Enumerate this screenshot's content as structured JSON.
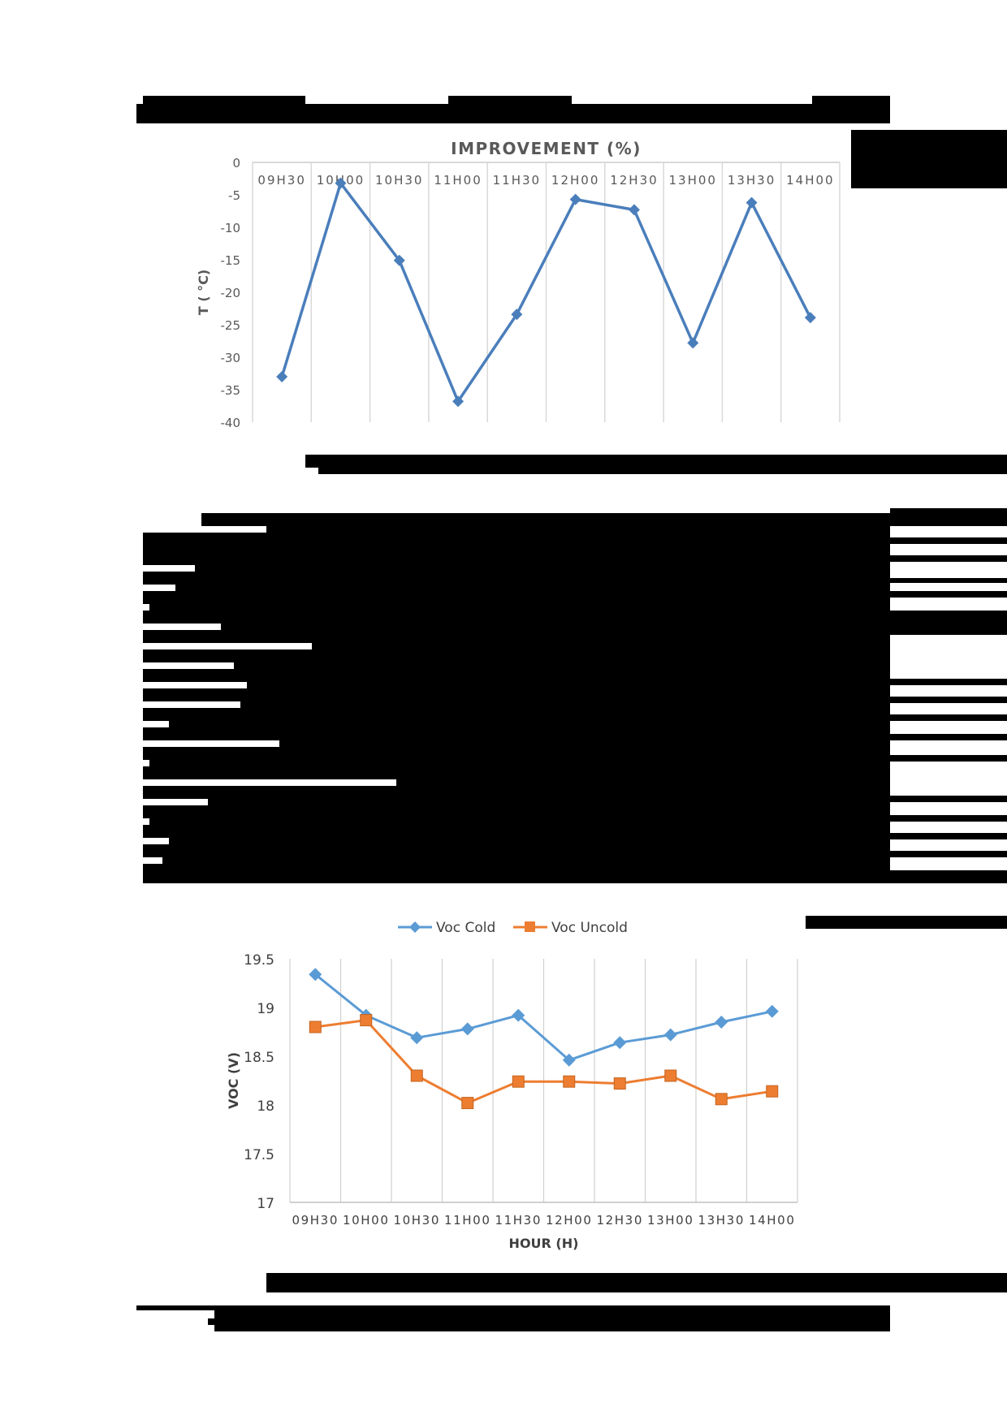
{
  "page": {
    "redaction_color": "#000000"
  },
  "figure1": {
    "title": "IMPROVEMENT (%)",
    "ylabel": "T ( °C)",
    "line_color": "#4A7EBB"
  },
  "figure2": {
    "legend": [
      "Voc  Cold",
      "Voc  Uncold"
    ],
    "xlabel": "HOUR (H)",
    "ylabel": "VOC (V)",
    "colors": [
      "#5B9BD5",
      "#ED7D31"
    ]
  },
  "chart_data": [
    {
      "type": "line",
      "title": "IMPROVEMENT (%)",
      "xlabel": "",
      "ylabel": "T ( °C)",
      "categories": [
        "09H30",
        "10H00",
        "10H30",
        "11H00",
        "11H30",
        "12H00",
        "12H30",
        "13H00",
        "13H30",
        "14H00"
      ],
      "series": [
        {
          "name": "Improvement",
          "marker": "diamond",
          "color": "#4A7EBB",
          "values": [
            -33.0,
            -3.2,
            -15.1,
            -36.8,
            -23.4,
            -5.7,
            -7.3,
            -27.8,
            -6.2,
            -23.9
          ]
        }
      ],
      "ylim": [
        -40,
        0
      ],
      "yticks": [
        0,
        -5,
        -10,
        -15,
        -20,
        -25,
        -30,
        -35,
        -40
      ],
      "xaxis_position": "top",
      "grid": "vertical",
      "legend": "none"
    },
    {
      "type": "line",
      "title": "",
      "xlabel": "HOUR (H)",
      "ylabel": "VOC (V)",
      "categories": [
        "09H30",
        "10H00",
        "10H30",
        "11H00",
        "11H30",
        "12H00",
        "12H30",
        "13H00",
        "13H30",
        "14H00"
      ],
      "series": [
        {
          "name": "Voc  Cold",
          "marker": "diamond",
          "color": "#5B9BD5",
          "values": [
            19.34,
            18.92,
            18.69,
            18.78,
            18.92,
            18.46,
            18.64,
            18.72,
            18.85,
            18.96
          ]
        },
        {
          "name": "Voc  Uncold",
          "marker": "square",
          "color": "#ED7D31",
          "values": [
            18.8,
            18.87,
            18.3,
            18.02,
            18.24,
            18.24,
            18.22,
            18.3,
            18.06,
            18.14
          ]
        }
      ],
      "ylim": [
        17,
        19.5
      ],
      "yticks": [
        19.5,
        19,
        18.5,
        18,
        17.5,
        17
      ],
      "grid": "vertical",
      "legend": "top"
    }
  ]
}
